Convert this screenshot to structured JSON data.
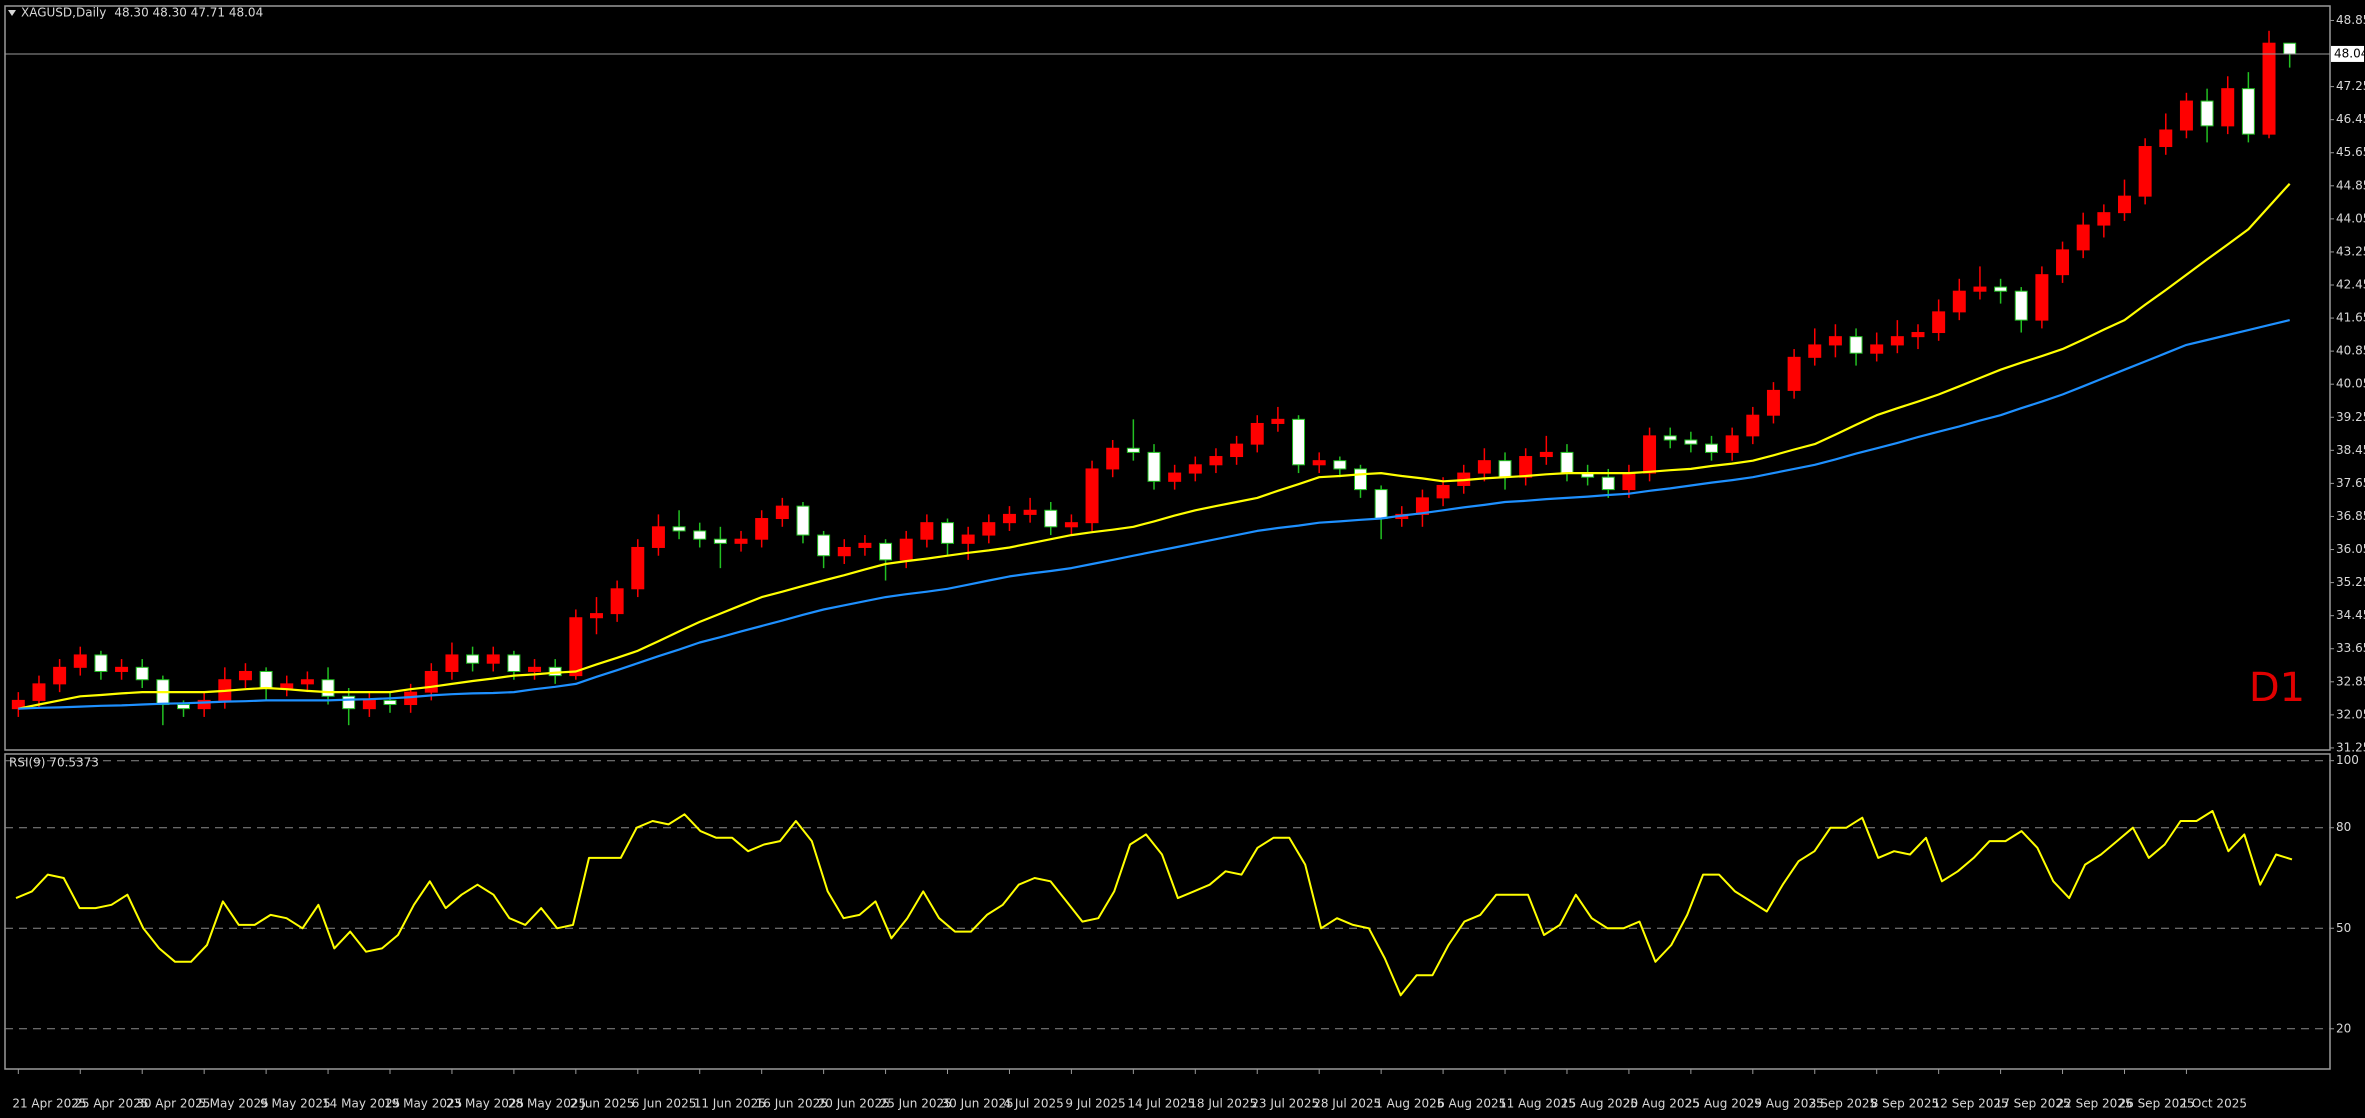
{
  "chart_data": [
    {
      "type": "candlestick",
      "title": "XAGUSD,Daily",
      "subtitle": "48.30 48.30 47.71 48.04",
      "annotation": "D1",
      "annotation_color": "#e00000",
      "up_color": "#ff0000",
      "down_color": "#ffffff",
      "down_wick_color": "#22c022",
      "current_price": 48.04,
      "ylim": [
        31.2,
        49.2
      ],
      "yticks": [
        31.25,
        32.05,
        32.85,
        33.65,
        34.45,
        35.25,
        36.05,
        36.85,
        37.65,
        38.45,
        39.25,
        40.05,
        40.85,
        41.65,
        42.45,
        43.25,
        44.05,
        44.85,
        45.65,
        46.45,
        47.25,
        48.85
      ],
      "categories": [
        "21 Apr 2025",
        null,
        null,
        "25 Apr 2025",
        null,
        null,
        "30 Apr 2025",
        null,
        null,
        "5 May 2025",
        null,
        null,
        "9 May 2025",
        null,
        null,
        "14 May 2025",
        null,
        null,
        "19 May 2025",
        null,
        null,
        "23 May 2025",
        null,
        null,
        "28 May 2025",
        null,
        null,
        "2 Jun 2025",
        null,
        null,
        "6 Jun 2025",
        null,
        null,
        "11 Jun 2025",
        null,
        null,
        "16 Jun 2025",
        null,
        null,
        "20 Jun 2025",
        null,
        null,
        "25 Jun 2025",
        null,
        null,
        "30 Jun 2025",
        null,
        null,
        "4 Jul 2025",
        null,
        null,
        "9 Jul 2025",
        null,
        null,
        "14 Jul 2025",
        null,
        null,
        "18 Jul 2025",
        null,
        null,
        "23 Jul 2025",
        null,
        null,
        "28 Jul 2025",
        null,
        null,
        "1 Aug 2025",
        null,
        null,
        "6 Aug 2025",
        null,
        null,
        "11 Aug 2025",
        null,
        null,
        "15 Aug 2025",
        null,
        null,
        "20 Aug 2025",
        null,
        null,
        "25 Aug 2025",
        null,
        null,
        "29 Aug 2025",
        null,
        null,
        "3 Sep 2025",
        null,
        null,
        "8 Sep 2025",
        null,
        null,
        "12 Sep 2025",
        null,
        null,
        "17 Sep 2025",
        null,
        null,
        "22 Sep 2025",
        null,
        null,
        "26 Sep 2025",
        null,
        null,
        "1 Oct 2025",
        null,
        null,
        null,
        null,
        null
      ],
      "candles": [
        [
          32.2,
          32.6,
          32.0,
          32.4
        ],
        [
          32.4,
          33.0,
          32.2,
          32.8
        ],
        [
          32.8,
          33.4,
          32.6,
          33.2
        ],
        [
          33.2,
          33.7,
          33.0,
          33.5
        ],
        [
          33.5,
          33.6,
          32.9,
          33.1
        ],
        [
          33.1,
          33.4,
          32.9,
          33.2
        ],
        [
          33.2,
          33.4,
          32.7,
          32.9
        ],
        [
          32.9,
          33.0,
          31.8,
          32.3
        ],
        [
          32.3,
          32.4,
          32.0,
          32.2
        ],
        [
          32.2,
          32.6,
          32.0,
          32.4
        ],
        [
          32.4,
          33.2,
          32.2,
          32.9
        ],
        [
          32.9,
          33.3,
          32.7,
          33.1
        ],
        [
          33.1,
          33.2,
          32.4,
          32.7
        ],
        [
          32.7,
          33.0,
          32.5,
          32.8
        ],
        [
          32.8,
          33.1,
          32.6,
          32.9
        ],
        [
          32.9,
          33.2,
          32.3,
          32.5
        ],
        [
          32.5,
          32.7,
          31.8,
          32.2
        ],
        [
          32.2,
          32.6,
          32.0,
          32.4
        ],
        [
          32.4,
          32.6,
          32.1,
          32.3
        ],
        [
          32.3,
          32.8,
          32.1,
          32.6
        ],
        [
          32.6,
          33.3,
          32.4,
          33.1
        ],
        [
          33.1,
          33.8,
          32.9,
          33.5
        ],
        [
          33.5,
          33.7,
          33.1,
          33.3
        ],
        [
          33.3,
          33.7,
          33.1,
          33.5
        ],
        [
          33.5,
          33.6,
          32.9,
          33.1
        ],
        [
          33.1,
          33.4,
          32.9,
          33.2
        ],
        [
          33.2,
          33.4,
          32.8,
          33.0
        ],
        [
          33.0,
          34.6,
          32.9,
          34.4
        ],
        [
          34.4,
          34.9,
          34.0,
          34.5
        ],
        [
          34.5,
          35.3,
          34.3,
          35.1
        ],
        [
          35.1,
          36.3,
          34.9,
          36.1
        ],
        [
          36.1,
          36.9,
          35.9,
          36.6
        ],
        [
          36.6,
          37.0,
          36.3,
          36.5
        ],
        [
          36.5,
          36.7,
          36.1,
          36.3
        ],
        [
          36.3,
          36.6,
          35.6,
          36.2
        ],
        [
          36.2,
          36.5,
          36.0,
          36.3
        ],
        [
          36.3,
          37.0,
          36.1,
          36.8
        ],
        [
          36.8,
          37.3,
          36.6,
          37.1
        ],
        [
          37.1,
          37.2,
          36.2,
          36.4
        ],
        [
          36.4,
          36.5,
          35.6,
          35.9
        ],
        [
          35.9,
          36.3,
          35.7,
          36.1
        ],
        [
          36.1,
          36.4,
          35.9,
          36.2
        ],
        [
          36.2,
          36.3,
          35.3,
          35.8
        ],
        [
          35.8,
          36.5,
          35.6,
          36.3
        ],
        [
          36.3,
          36.9,
          36.1,
          36.7
        ],
        [
          36.7,
          36.8,
          35.9,
          36.2
        ],
        [
          36.2,
          36.6,
          35.8,
          36.4
        ],
        [
          36.4,
          36.9,
          36.2,
          36.7
        ],
        [
          36.7,
          37.1,
          36.5,
          36.9
        ],
        [
          36.9,
          37.3,
          36.7,
          37.0
        ],
        [
          37.0,
          37.2,
          36.4,
          36.6
        ],
        [
          36.6,
          36.9,
          36.4,
          36.7
        ],
        [
          36.7,
          38.2,
          36.5,
          38.0
        ],
        [
          38.0,
          38.7,
          37.8,
          38.5
        ],
        [
          38.5,
          39.2,
          38.2,
          38.4
        ],
        [
          38.4,
          38.6,
          37.5,
          37.7
        ],
        [
          37.7,
          38.1,
          37.5,
          37.9
        ],
        [
          37.9,
          38.3,
          37.7,
          38.1
        ],
        [
          38.1,
          38.5,
          37.9,
          38.3
        ],
        [
          38.3,
          38.8,
          38.1,
          38.6
        ],
        [
          38.6,
          39.3,
          38.4,
          39.1
        ],
        [
          39.1,
          39.5,
          38.9,
          39.2
        ],
        [
          39.2,
          39.3,
          37.9,
          38.1
        ],
        [
          38.1,
          38.4,
          37.9,
          38.2
        ],
        [
          38.2,
          38.3,
          37.8,
          38.0
        ],
        [
          38.0,
          38.1,
          37.3,
          37.5
        ],
        [
          37.5,
          37.6,
          36.3,
          36.8
        ],
        [
          36.8,
          37.1,
          36.6,
          36.9
        ],
        [
          36.9,
          37.5,
          36.6,
          37.3
        ],
        [
          37.3,
          37.8,
          37.1,
          37.6
        ],
        [
          37.6,
          38.1,
          37.4,
          37.9
        ],
        [
          37.9,
          38.5,
          37.7,
          38.2
        ],
        [
          38.2,
          38.4,
          37.5,
          37.8
        ],
        [
          37.8,
          38.5,
          37.6,
          38.3
        ],
        [
          38.3,
          38.8,
          38.1,
          38.4
        ],
        [
          38.4,
          38.6,
          37.7,
          37.9
        ],
        [
          37.9,
          38.1,
          37.6,
          37.8
        ],
        [
          37.8,
          38.0,
          37.3,
          37.5
        ],
        [
          37.5,
          38.1,
          37.3,
          37.9
        ],
        [
          37.9,
          39.0,
          37.7,
          38.8
        ],
        [
          38.8,
          39.0,
          38.5,
          38.7
        ],
        [
          38.7,
          38.9,
          38.4,
          38.6
        ],
        [
          38.6,
          38.8,
          38.2,
          38.4
        ],
        [
          38.4,
          39.0,
          38.2,
          38.8
        ],
        [
          38.8,
          39.5,
          38.6,
          39.3
        ],
        [
          39.3,
          40.1,
          39.1,
          39.9
        ],
        [
          39.9,
          40.9,
          39.7,
          40.7
        ],
        [
          40.7,
          41.4,
          40.5,
          41.0
        ],
        [
          41.0,
          41.5,
          40.7,
          41.2
        ],
        [
          41.2,
          41.4,
          40.5,
          40.8
        ],
        [
          40.8,
          41.3,
          40.6,
          41.0
        ],
        [
          41.0,
          41.6,
          40.8,
          41.2
        ],
        [
          41.2,
          41.5,
          40.9,
          41.3
        ],
        [
          41.3,
          42.1,
          41.1,
          41.8
        ],
        [
          41.8,
          42.6,
          41.6,
          42.3
        ],
        [
          42.3,
          42.9,
          42.1,
          42.4
        ],
        [
          42.4,
          42.6,
          42.0,
          42.3
        ],
        [
          42.3,
          42.4,
          41.3,
          41.6
        ],
        [
          41.6,
          42.9,
          41.4,
          42.7
        ],
        [
          42.7,
          43.5,
          42.5,
          43.3
        ],
        [
          43.3,
          44.2,
          43.1,
          43.9
        ],
        [
          43.9,
          44.4,
          43.6,
          44.2
        ],
        [
          44.2,
          45.0,
          44.0,
          44.6
        ],
        [
          44.6,
          46.0,
          44.4,
          45.8
        ],
        [
          45.8,
          46.6,
          45.6,
          46.2
        ],
        [
          46.2,
          47.1,
          46.0,
          46.9
        ],
        [
          46.9,
          47.2,
          45.9,
          46.3
        ],
        [
          46.3,
          47.5,
          46.1,
          47.2
        ],
        [
          47.2,
          47.6,
          45.9,
          46.1
        ],
        [
          46.1,
          48.6,
          46.0,
          48.3
        ],
        [
          48.3,
          48.3,
          47.71,
          48.04
        ]
      ],
      "series": [
        {
          "color": "#ffff00",
          "values": [
            32.2,
            32.3,
            32.4,
            32.5,
            32.53,
            32.57,
            32.6,
            32.6,
            32.6,
            32.6,
            32.63,
            32.67,
            32.7,
            32.67,
            32.63,
            32.6,
            32.6,
            32.6,
            32.6,
            32.67,
            32.73,
            32.8,
            32.87,
            32.93,
            33.0,
            33.03,
            33.07,
            33.1,
            33.27,
            33.43,
            33.6,
            33.83,
            34.07,
            34.3,
            34.5,
            34.7,
            34.9,
            35.03,
            35.17,
            35.3,
            35.43,
            35.57,
            35.7,
            35.77,
            35.83,
            35.9,
            35.97,
            36.03,
            36.1,
            36.2,
            36.3,
            36.4,
            36.47,
            36.53,
            36.6,
            36.73,
            36.87,
            37.0,
            37.1,
            37.2,
            37.3,
            37.47,
            37.63,
            37.8,
            37.83,
            37.87,
            37.9,
            37.83,
            37.77,
            37.7,
            37.73,
            37.77,
            37.8,
            37.83,
            37.87,
            37.9,
            37.9,
            37.9,
            37.9,
            37.93,
            37.97,
            38.0,
            38.07,
            38.13,
            38.2,
            38.33,
            38.47,
            38.6,
            38.83,
            39.07,
            39.3,
            39.47,
            39.63,
            39.8,
            40.0,
            40.2,
            40.4,
            40.57,
            40.73,
            40.9,
            41.13,
            41.37,
            41.6,
            41.97,
            42.33,
            42.7,
            43.07,
            43.43,
            43.8,
            44.35,
            44.9
          ]
        },
        {
          "color": "#1e90ff",
          "values": [
            32.2,
            32.22,
            32.23,
            32.25,
            32.27,
            32.28,
            32.3,
            32.32,
            32.33,
            32.35,
            32.37,
            32.38,
            32.4,
            32.4,
            32.4,
            32.4,
            32.42,
            32.43,
            32.45,
            32.48,
            32.52,
            32.55,
            32.57,
            32.58,
            32.6,
            32.67,
            32.73,
            32.8,
            32.97,
            33.13,
            33.3,
            33.47,
            33.63,
            33.8,
            33.93,
            34.07,
            34.2,
            34.33,
            34.47,
            34.6,
            34.7,
            34.8,
            34.9,
            34.97,
            35.03,
            35.1,
            35.2,
            35.3,
            35.4,
            35.47,
            35.53,
            35.6,
            35.7,
            35.8,
            35.9,
            36.0,
            36.1,
            36.2,
            36.3,
            36.4,
            36.5,
            36.57,
            36.63,
            36.7,
            36.73,
            36.77,
            36.8,
            36.87,
            36.93,
            37.0,
            37.07,
            37.13,
            37.2,
            37.23,
            37.27,
            37.3,
            37.33,
            37.37,
            37.4,
            37.47,
            37.53,
            37.6,
            37.67,
            37.73,
            37.8,
            37.9,
            38.0,
            38.1,
            38.23,
            38.37,
            38.5,
            38.63,
            38.77,
            38.9,
            39.03,
            39.17,
            39.3,
            39.47,
            39.63,
            39.8,
            40.0,
            40.2,
            40.4,
            40.6,
            40.8,
            41.0,
            41.12,
            41.24,
            41.36,
            41.48,
            41.6
          ]
        }
      ]
    },
    {
      "type": "line",
      "title": "RSI(9) 70.5373",
      "color": "#ffff00",
      "ylim": [
        8,
        102
      ],
      "yticks": [
        20,
        50,
        80,
        100
      ],
      "grid": true,
      "values": [
        59,
        61,
        66,
        65,
        56,
        56,
        57,
        60,
        50,
        44,
        40,
        40,
        45,
        58,
        51,
        51,
        54,
        53,
        50,
        57,
        44,
        49,
        43,
        44,
        48,
        57,
        64,
        56,
        60,
        63,
        60,
        53,
        51,
        56,
        50,
        51,
        71,
        71,
        71,
        80,
        82,
        81,
        84,
        79,
        77,
        77,
        73,
        75,
        76,
        82,
        76,
        61,
        53,
        54,
        58,
        47,
        53,
        61,
        53,
        49,
        49,
        54,
        57,
        63,
        65,
        64,
        58,
        52,
        53,
        61,
        75,
        78,
        72,
        59,
        61,
        63,
        67,
        66,
        74,
        77,
        77,
        69,
        50,
        53,
        51,
        50,
        41,
        30,
        36,
        36,
        45,
        52,
        54,
        60,
        60,
        60,
        48,
        51,
        60,
        53,
        50,
        50,
        52,
        40,
        45,
        54,
        66,
        66,
        61,
        58,
        55,
        63,
        70,
        73,
        80,
        80,
        83,
        71,
        73,
        72,
        77,
        64,
        67,
        71,
        76,
        76,
        79,
        74,
        64,
        59,
        69,
        72,
        76,
        80,
        71,
        75,
        82,
        82,
        85,
        73,
        78,
        63,
        72,
        70.5373
      ]
    }
  ]
}
